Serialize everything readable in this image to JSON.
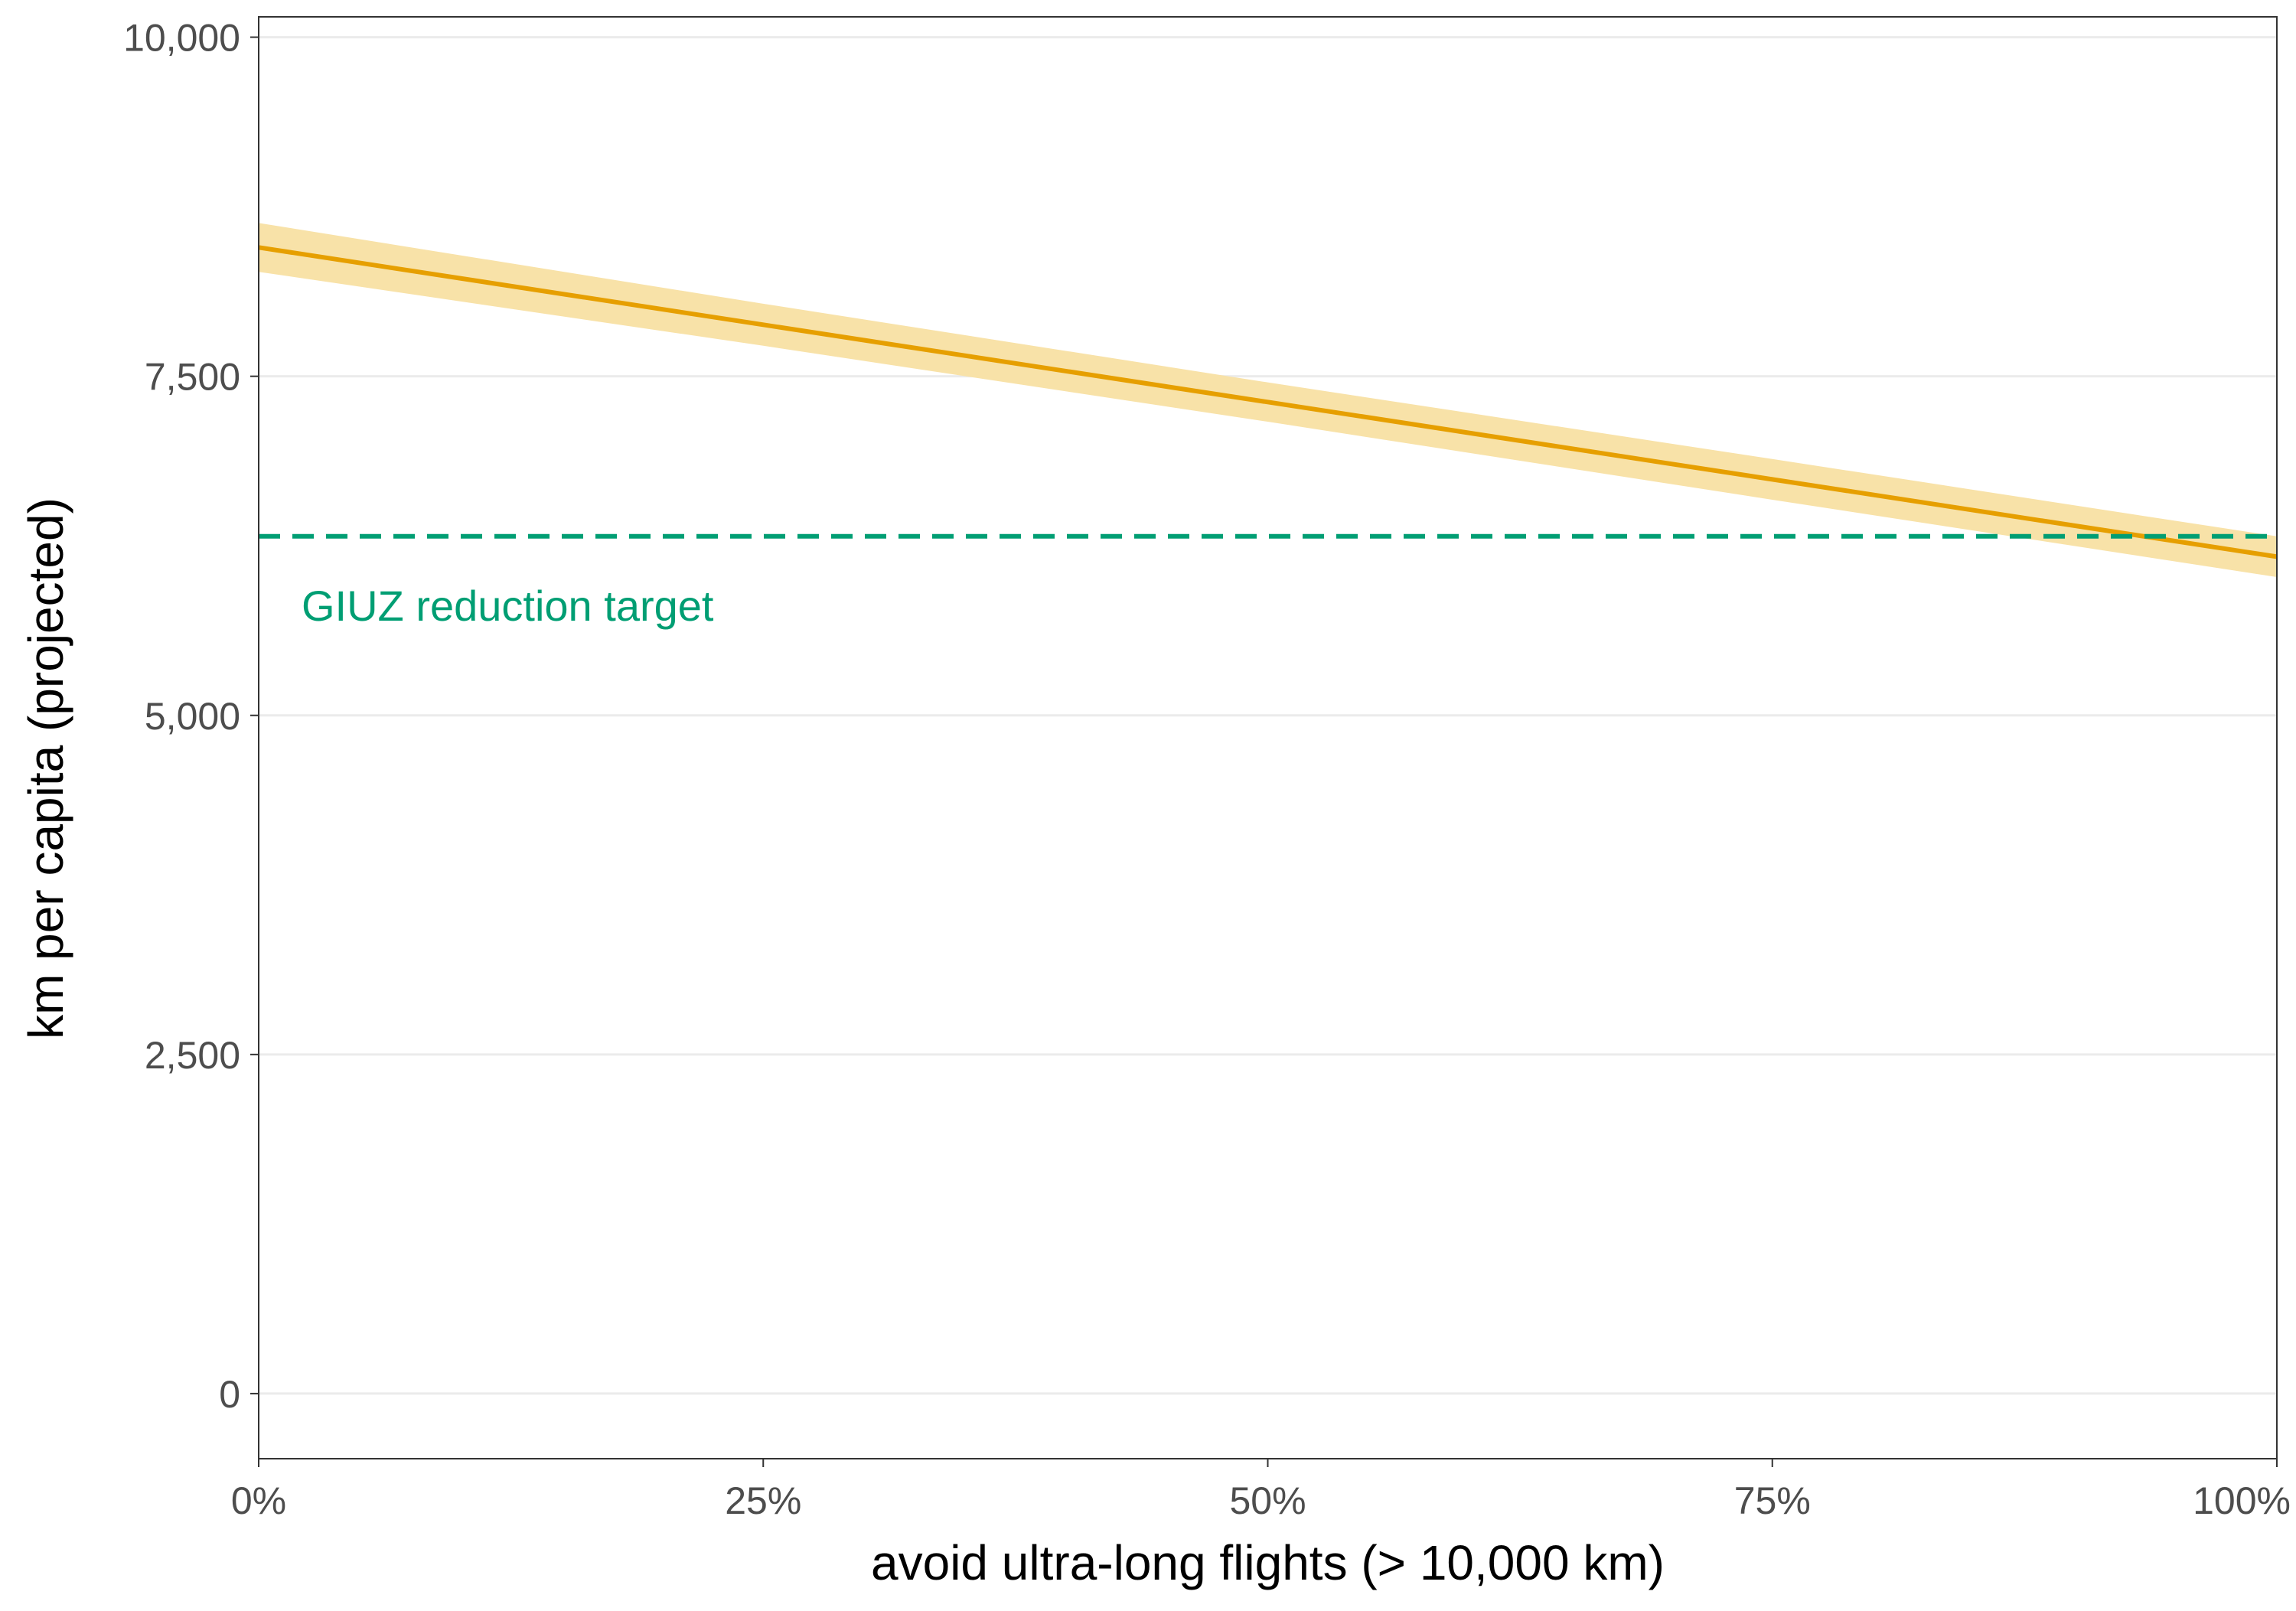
{
  "chart_data": {
    "type": "line",
    "title": "",
    "xlabel": "avoid ultra-long flights (> 10,000 km)",
    "ylabel": "km per capita (projected)",
    "x_ticks": [
      {
        "value": 0,
        "label": "0%"
      },
      {
        "value": 25,
        "label": "25%"
      },
      {
        "value": 50,
        "label": "50%"
      },
      {
        "value": 75,
        "label": "75%"
      },
      {
        "value": 100,
        "label": "100%"
      }
    ],
    "y_ticks": [
      {
        "value": 0,
        "label": "0"
      },
      {
        "value": 2500,
        "label": "2,500"
      },
      {
        "value": 5000,
        "label": "5,000"
      },
      {
        "value": 7500,
        "label": "7,500"
      },
      {
        "value": 10000,
        "label": "10,000"
      }
    ],
    "xlim": [
      0,
      100
    ],
    "ylim": [
      -480,
      10150
    ],
    "grid": "horizontal major",
    "series": [
      {
        "x": [
          0,
          25,
          50,
          75,
          100
        ],
        "y": [
          8450,
          7880,
          7310,
          6740,
          6170
        ],
        "lower": [
          8270,
          7725,
          7165,
          6590,
          6020
        ],
        "upper": [
          8630,
          8035,
          7455,
          6890,
          6320
        ],
        "color": "#E69F00",
        "ribbon_color": "#F8E2A8"
      }
    ],
    "reference_line": {
      "y": 6320,
      "label": "GIUZ reduction target",
      "color": "#009E73",
      "style": "dashed"
    }
  }
}
